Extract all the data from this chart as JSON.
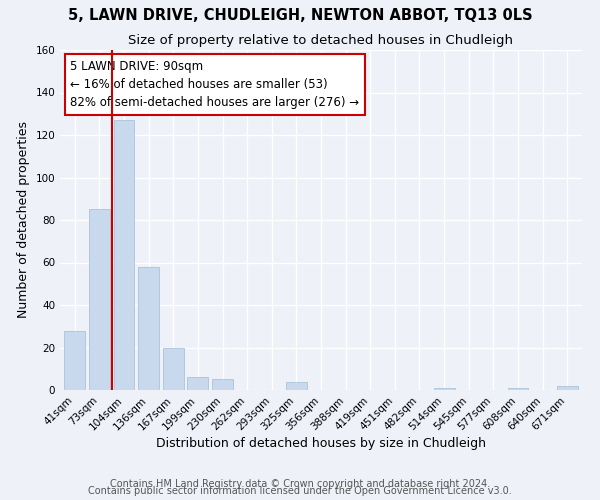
{
  "title": "5, LAWN DRIVE, CHUDLEIGH, NEWTON ABBOT, TQ13 0LS",
  "subtitle": "Size of property relative to detached houses in Chudleigh",
  "xlabel": "Distribution of detached houses by size in Chudleigh",
  "ylabel": "Number of detached properties",
  "categories": [
    "41sqm",
    "73sqm",
    "104sqm",
    "136sqm",
    "167sqm",
    "199sqm",
    "230sqm",
    "262sqm",
    "293sqm",
    "325sqm",
    "356sqm",
    "388sqm",
    "419sqm",
    "451sqm",
    "482sqm",
    "514sqm",
    "545sqm",
    "577sqm",
    "608sqm",
    "640sqm",
    "671sqm"
  ],
  "values": [
    28,
    85,
    127,
    58,
    20,
    6,
    5,
    0,
    0,
    4,
    0,
    0,
    0,
    0,
    0,
    1,
    0,
    0,
    1,
    0,
    2
  ],
  "bar_color": "#c8d9ed",
  "bar_edge_color": "#a0bcd8",
  "vline_x_index": 1.5,
  "vline_color": "#cc0000",
  "annotation_line1": "5 LAWN DRIVE: 90sqm",
  "annotation_line2": "← 16% of detached houses are smaller (53)",
  "annotation_line3": "82% of semi-detached houses are larger (276) →",
  "annotation_box_color": "#ffffff",
  "annotation_box_edge": "#cc0000",
  "ylim": [
    0,
    160
  ],
  "yticks": [
    0,
    20,
    40,
    60,
    80,
    100,
    120,
    140,
    160
  ],
  "footer_line1": "Contains HM Land Registry data © Crown copyright and database right 2024.",
  "footer_line2": "Contains public sector information licensed under the Open Government Licence v3.0.",
  "bg_color": "#eef2f8",
  "plot_bg_color": "#eef2f8",
  "title_fontsize": 10.5,
  "subtitle_fontsize": 9.5,
  "axis_label_fontsize": 9,
  "tick_fontsize": 7.5,
  "annotation_fontsize": 8.5,
  "footer_fontsize": 7
}
